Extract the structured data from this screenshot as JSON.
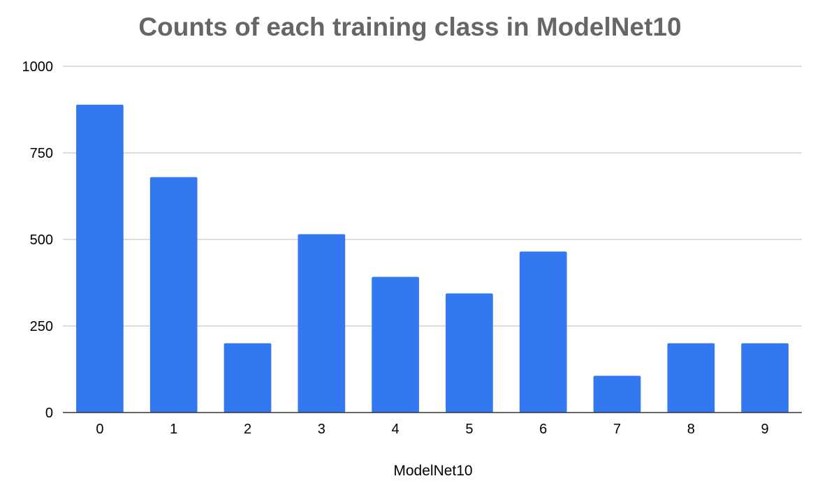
{
  "chart_data": {
    "type": "bar",
    "title": "Counts of each training class in ModelNet10",
    "xlabel": "ModelNet10",
    "ylabel": "",
    "categories": [
      "0",
      "1",
      "2",
      "3",
      "4",
      "5",
      "6",
      "7",
      "8",
      "9"
    ],
    "values": [
      889,
      680,
      200,
      515,
      392,
      344,
      465,
      106,
      200,
      200
    ],
    "ylim": [
      0,
      1000
    ],
    "yticks": [
      "0",
      "250",
      "500",
      "750",
      "1000"
    ],
    "grid": true,
    "legend": "none",
    "bar_color": "#3378F0"
  }
}
